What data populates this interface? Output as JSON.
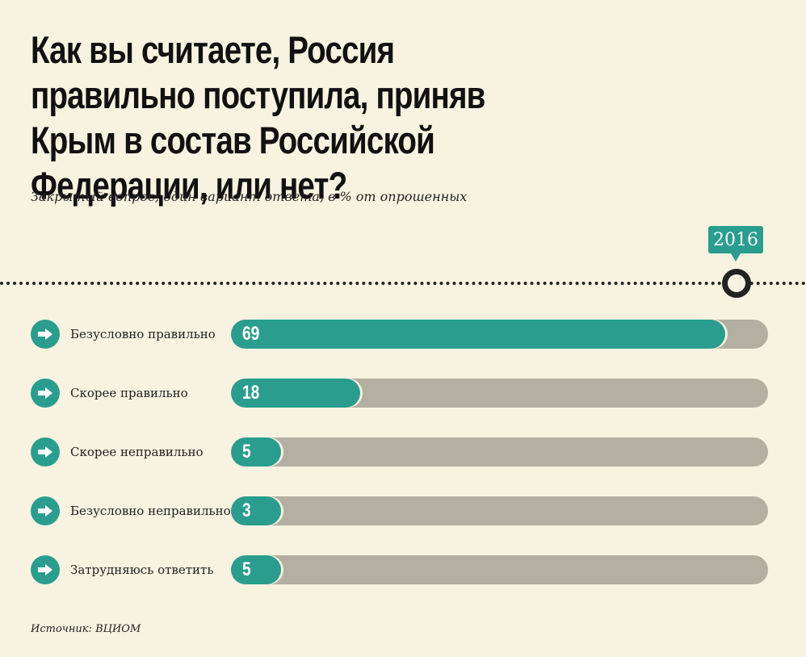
{
  "chart_data": {
    "type": "bar",
    "title": "Как вы считаете, Россия правильно поступила, приняв Крым в состав Российской Федерации, или нет?",
    "subtitle": "Закрытый вопрос, один вариант ответа, в % от опрошенных",
    "year": "2016",
    "categories": [
      "Безусловно правильно",
      "Скорее правильно",
      "Скорее неправильно",
      "Безусловно неправильно",
      "Затрудняюсь ответить"
    ],
    "values": [
      69,
      18,
      5,
      3,
      5
    ],
    "xlim": [
      0,
      75
    ],
    "source": "Источник: ВЦИОМ",
    "colors": {
      "fill": "#2a9d8f",
      "track": "#b3b0a1",
      "background": "#f7f3e0"
    }
  }
}
